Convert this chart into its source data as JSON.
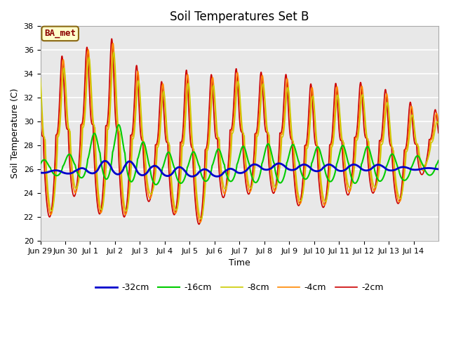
{
  "title": "Soil Temperatures Set B",
  "xlabel": "Time",
  "ylabel": "Soil Temperature (C)",
  "ylim": [
    20,
    38
  ],
  "annotation": "BA_met",
  "x_tick_labels": [
    "Jun 29",
    "Jun 30",
    "Jul 1",
    "Jul 2",
    "Jul 3",
    "Jul 4",
    "Jul 5",
    "Jul 6",
    "Jul 7",
    "Jul 8",
    "Jul 9",
    "Jul 10",
    "Jul 11",
    "Jul 12",
    "Jul 13",
    "Jul 14"
  ],
  "legend_labels": [
    "-2cm",
    "-4cm",
    "-8cm",
    "-16cm",
    "-32cm"
  ],
  "line_colors": [
    "#cc0000",
    "#ff8800",
    "#cccc00",
    "#00cc00",
    "#0000cc"
  ],
  "line_widths": [
    1.2,
    1.2,
    1.2,
    1.5,
    2.0
  ],
  "bg_color": "#e8e8e8",
  "title_fontsize": 12,
  "label_fontsize": 9,
  "tick_fontsize": 8
}
